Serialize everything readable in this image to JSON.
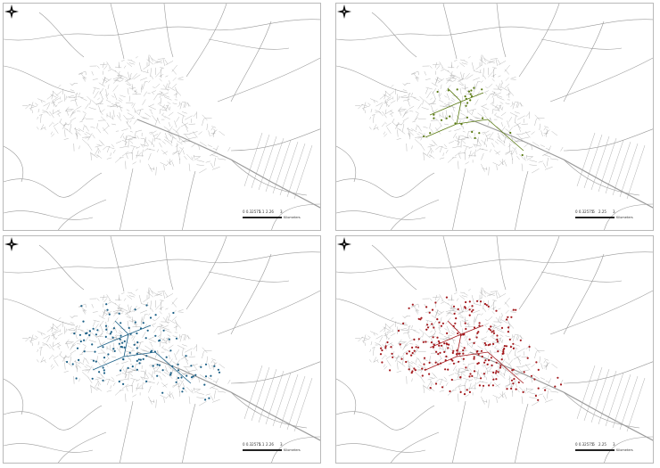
{
  "panels": [
    {
      "id": "tl",
      "point_color": "",
      "has_points": false,
      "scale": {
        "labels": [
          "0 0.32575",
          "1.1",
          "2.26",
          "3"
        ],
        "unit": "Kilometers"
      }
    },
    {
      "id": "tr",
      "point_color": "#5a7a12",
      "has_points": true,
      "scale": {
        "labels": [
          "0 0.32575",
          ".6",
          "2.25",
          "3"
        ],
        "unit": "Kilometers"
      }
    },
    {
      "id": "bl",
      "point_color": "#1a5f86",
      "has_points": true,
      "scale": {
        "labels": [
          "0 0.32575",
          "1.1",
          "2.26",
          "3"
        ],
        "unit": "Kilometers"
      }
    },
    {
      "id": "br",
      "point_color": "#a3181c",
      "has_points": true,
      "scale": {
        "labels": [
          "0 0.32575",
          ".6",
          "2.25",
          "3"
        ],
        "unit": "Kilometers"
      }
    }
  ],
  "legend": {
    "north_arrow_icon": "north-arrow-icon",
    "road_color": "#9a9a9a",
    "frame_color": "#b9b9b9"
  }
}
